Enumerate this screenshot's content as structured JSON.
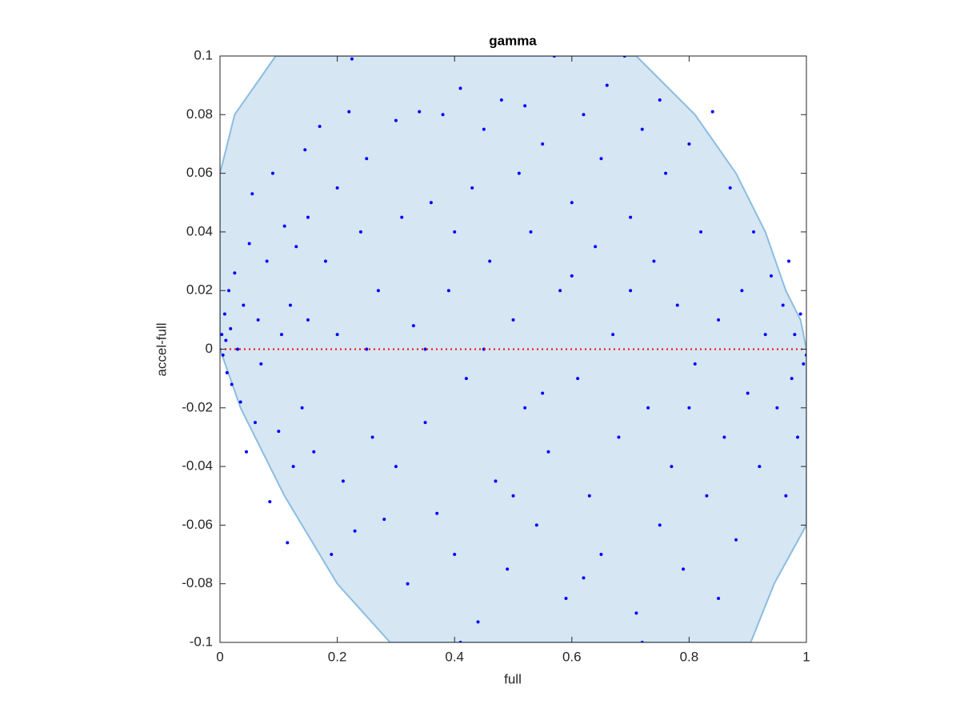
{
  "chart_data": {
    "type": "scatter",
    "title": "gamma",
    "x_label": "full",
    "y_label": "accel-full",
    "xlim": [
      0,
      1
    ],
    "ylim": [
      -0.1,
      0.1
    ],
    "xticks": [
      0,
      0.2,
      0.4,
      0.6,
      0.8,
      1
    ],
    "yticks": [
      -0.1,
      -0.08,
      -0.06,
      -0.04,
      -0.02,
      0,
      0.02,
      0.04,
      0.06,
      0.08,
      0.1
    ],
    "region": {
      "color": "#d6e6f3",
      "edge_color": "#8bbde0",
      "x": [
        0,
        0.025,
        0.095,
        0.71,
        0.81,
        0.88,
        0.93,
        0.965,
        0.99,
        1,
        1,
        0.945,
        0.905,
        0.29,
        0.2,
        0.11,
        0.035,
        0
      ],
      "y": [
        0.06,
        0.08,
        0.1,
        0.1,
        0.08,
        0.06,
        0.04,
        0.02,
        0.01,
        0.0,
        -0.06,
        -0.08,
        -0.1,
        -0.1,
        -0.08,
        -0.05,
        -0.02,
        0
      ]
    },
    "reference_line": {
      "y": 0,
      "color": "#ff0000"
    },
    "series": [
      {
        "color": "#0000ff",
        "x": [
          0.003,
          0.005,
          0.008,
          0.01,
          0.012,
          0.015,
          0.018,
          0.02,
          0.025,
          0.03,
          0.035,
          0.04,
          0.045,
          0.05,
          0.055,
          0.06,
          0.065,
          0.07,
          0.08,
          0.085,
          0.09,
          0.1,
          0.105,
          0.11,
          0.115,
          0.12,
          0.125,
          0.13,
          0.14,
          0.145,
          0.15,
          0.16,
          0.17,
          0.18,
          0.19,
          0.2,
          0.21,
          0.22,
          0.225,
          0.23,
          0.24,
          0.25,
          0.26,
          0.27,
          0.28,
          0.3,
          0.31,
          0.32,
          0.33,
          0.34,
          0.35,
          0.36,
          0.37,
          0.38,
          0.39,
          0.4,
          0.41,
          0.42,
          0.43,
          0.44,
          0.45,
          0.46,
          0.47,
          0.48,
          0.49,
          0.5,
          0.51,
          0.52,
          0.53,
          0.54,
          0.55,
          0.56,
          0.57,
          0.58,
          0.59,
          0.6,
          0.61,
          0.62,
          0.63,
          0.64,
          0.65,
          0.66,
          0.67,
          0.68,
          0.69,
          0.7,
          0.71,
          0.72,
          0.73,
          0.74,
          0.75,
          0.76,
          0.77,
          0.78,
          0.79,
          0.8,
          0.81,
          0.82,
          0.83,
          0.84,
          0.85,
          0.86,
          0.87,
          0.88,
          0.89,
          0.9,
          0.91,
          0.92,
          0.93,
          0.94,
          0.95,
          0.96,
          0.965,
          0.97,
          0.975,
          0.98,
          0.985,
          0.99,
          0.995,
          1.0,
          0.6,
          0.55,
          0.45,
          0.35,
          0.25,
          0.15,
          0.7,
          0.8,
          0.5,
          0.4,
          0.3,
          0.2,
          0.65,
          0.75,
          0.85,
          0.72,
          0.41,
          0.62,
          0.52
        ],
        "values": [
          0.005,
          -0.002,
          0.012,
          0.003,
          -0.008,
          0.02,
          0.007,
          -0.012,
          0.026,
          0.0,
          -0.018,
          0.015,
          -0.035,
          0.036,
          0.053,
          -0.025,
          0.01,
          -0.005,
          0.03,
          -0.052,
          0.06,
          -0.028,
          0.005,
          0.042,
          -0.066,
          0.015,
          -0.04,
          0.035,
          -0.02,
          0.068,
          0.045,
          -0.035,
          0.076,
          0.03,
          -0.07,
          0.005,
          -0.045,
          0.081,
          0.099,
          -0.062,
          0.04,
          0.065,
          -0.03,
          0.02,
          -0.058,
          0.078,
          0.045,
          -0.08,
          0.008,
          0.081,
          -0.025,
          0.05,
          -0.056,
          0.08,
          0.02,
          -0.07,
          0.089,
          -0.01,
          0.055,
          -0.093,
          0.075,
          0.03,
          -0.045,
          0.085,
          -0.075,
          0.01,
          0.06,
          -0.02,
          0.04,
          -0.06,
          0.07,
          -0.035,
          0.1,
          0.02,
          -0.085,
          0.05,
          -0.01,
          0.08,
          -0.05,
          0.035,
          -0.07,
          0.09,
          0.005,
          -0.03,
          0.1,
          0.045,
          -0.09,
          0.075,
          -0.02,
          0.03,
          -0.06,
          0.06,
          -0.04,
          0.015,
          -0.075,
          0.07,
          -0.005,
          0.04,
          -0.05,
          0.081,
          0.01,
          -0.03,
          0.055,
          -0.065,
          0.02,
          -0.015,
          0.04,
          -0.04,
          0.005,
          0.025,
          -0.02,
          0.015,
          -0.05,
          0.03,
          -0.01,
          0.005,
          -0.03,
          0.012,
          -0.005,
          -0.002,
          0.025,
          -0.015,
          0.0,
          0.0,
          0.0,
          0.01,
          0.02,
          -0.02,
          -0.05,
          0.04,
          -0.04,
          0.055,
          0.065,
          0.085,
          -0.085,
          -0.1,
          -0.1,
          -0.078,
          0.083
        ]
      }
    ]
  }
}
